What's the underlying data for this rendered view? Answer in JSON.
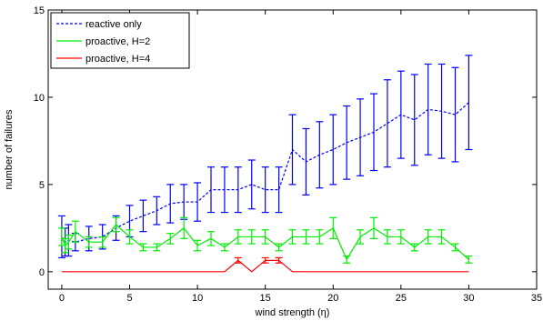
{
  "chart_data": {
    "type": "line",
    "xlabel": "wind strength (η)",
    "ylabel": "number of failures",
    "xlim": [
      -1,
      35
    ],
    "ylim": [
      -1,
      15
    ],
    "xticks": [
      0,
      5,
      10,
      15,
      20,
      25,
      30,
      35
    ],
    "yticks": [
      0,
      5,
      10,
      15
    ],
    "grid": false,
    "legend": "top-left",
    "series": [
      {
        "name": "reactive only",
        "color": "#0000ff",
        "style": "dashed",
        "x": [
          0,
          0.25,
          0.5,
          1,
          2,
          3,
          4,
          5,
          6,
          7,
          8,
          9,
          10,
          11,
          12,
          13,
          14,
          15,
          16,
          17,
          18,
          19,
          20,
          21,
          22,
          23,
          24,
          25,
          26,
          27,
          28,
          29,
          30
        ],
        "y": [
          2.0,
          1.7,
          1.8,
          1.7,
          1.9,
          2.0,
          2.5,
          2.9,
          3.2,
          3.5,
          3.9,
          4.0,
          4.0,
          4.7,
          4.7,
          4.7,
          5.0,
          4.7,
          4.7,
          7.0,
          6.3,
          6.7,
          7.0,
          7.4,
          7.7,
          8.0,
          8.5,
          9.0,
          8.7,
          9.3,
          9.2,
          9.0,
          9.7
        ],
        "err": [
          1.2,
          0.8,
          0.9,
          0.5,
          0.7,
          0.7,
          0.7,
          0.9,
          0.9,
          0.8,
          1.1,
          1.0,
          1.1,
          1.3,
          1.3,
          1.3,
          1.4,
          1.3,
          1.3,
          2.0,
          1.9,
          1.9,
          2.0,
          2.1,
          2.2,
          2.2,
          2.5,
          2.5,
          2.6,
          2.6,
          2.7,
          2.7,
          2.7
        ]
      },
      {
        "name": "proactive, H=2",
        "color": "#00ee00",
        "style": "solid",
        "x": [
          0,
          0.25,
          0.5,
          1,
          2,
          3,
          4,
          5,
          6,
          7,
          8,
          9,
          10,
          11,
          12,
          13,
          14,
          15,
          16,
          17,
          18,
          19,
          20,
          21,
          22,
          23,
          24,
          25,
          26,
          27,
          28,
          29,
          30
        ],
        "y": [
          2.0,
          1.5,
          1.7,
          2.3,
          1.7,
          1.7,
          2.7,
          2.0,
          1.4,
          1.4,
          1.9,
          2.5,
          1.5,
          1.9,
          1.4,
          2.0,
          2.0,
          2.0,
          1.4,
          2.0,
          2.0,
          2.0,
          2.5,
          0.7,
          2.0,
          2.5,
          2.0,
          2.0,
          1.4,
          2.0,
          2.0,
          1.4,
          0.7
        ],
        "err": [
          0.5,
          0.4,
          0.4,
          0.6,
          0.3,
          0.3,
          0.4,
          0.4,
          0.2,
          0.2,
          0.3,
          0.6,
          0.3,
          0.4,
          0.2,
          0.4,
          0.4,
          0.4,
          0.2,
          0.4,
          0.4,
          0.4,
          0.6,
          0.2,
          0.4,
          0.6,
          0.4,
          0.4,
          0.2,
          0.4,
          0.4,
          0.2,
          0.2
        ]
      },
      {
        "name": "proactive, H=4",
        "color": "#ff0000",
        "style": "solid",
        "x": [
          0,
          0.5,
          1,
          2,
          3,
          4,
          5,
          6,
          7,
          8,
          9,
          10,
          11,
          12,
          13,
          14,
          15,
          16,
          17,
          18,
          19,
          20,
          21,
          22,
          23,
          24,
          25,
          26,
          27,
          28,
          29,
          30
        ],
        "y": [
          0,
          0,
          0,
          0,
          0,
          0,
          0,
          0,
          0,
          0,
          0,
          0,
          0,
          0,
          0.65,
          0,
          0.65,
          0.65,
          0,
          0,
          0,
          0,
          0,
          0,
          0,
          0,
          0,
          0,
          0,
          0,
          0,
          0
        ],
        "err": [
          0,
          0,
          0,
          0,
          0,
          0,
          0,
          0,
          0,
          0,
          0,
          0,
          0,
          0,
          0.15,
          0,
          0.15,
          0.15,
          0,
          0,
          0,
          0,
          0,
          0,
          0,
          0,
          0,
          0,
          0,
          0,
          0,
          0
        ]
      }
    ]
  }
}
